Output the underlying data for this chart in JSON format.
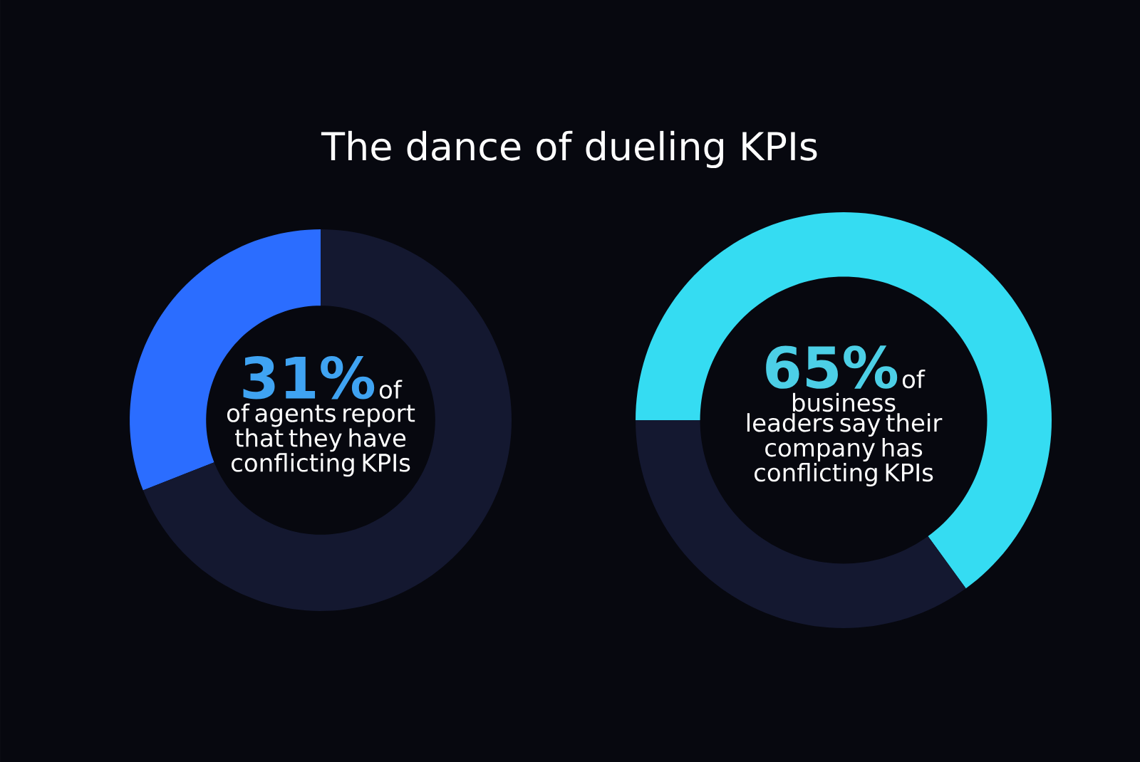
{
  "chart_data": [
    {
      "type": "donut",
      "title": "The dance of dueling KPIs",
      "categories": [
        null,
        null
      ],
      "values": [
        31,
        69
      ],
      "colors": [
        "#2b6dff",
        "#141830"
      ],
      "value_labels": [
        "31%",
        null
      ],
      "annotations": [
        "of",
        "of agents report that they have conflicting KPIs"
      ]
    },
    {
      "type": "donut",
      "categories": [
        null,
        null
      ],
      "values": [
        65,
        35
      ],
      "colors": [
        "#35dcf2",
        "#141830"
      ],
      "value_labels": [
        "65%",
        null
      ],
      "annotations": [
        "of",
        "business leaders say their company has conflicting KPIs"
      ]
    }
  ]
}
